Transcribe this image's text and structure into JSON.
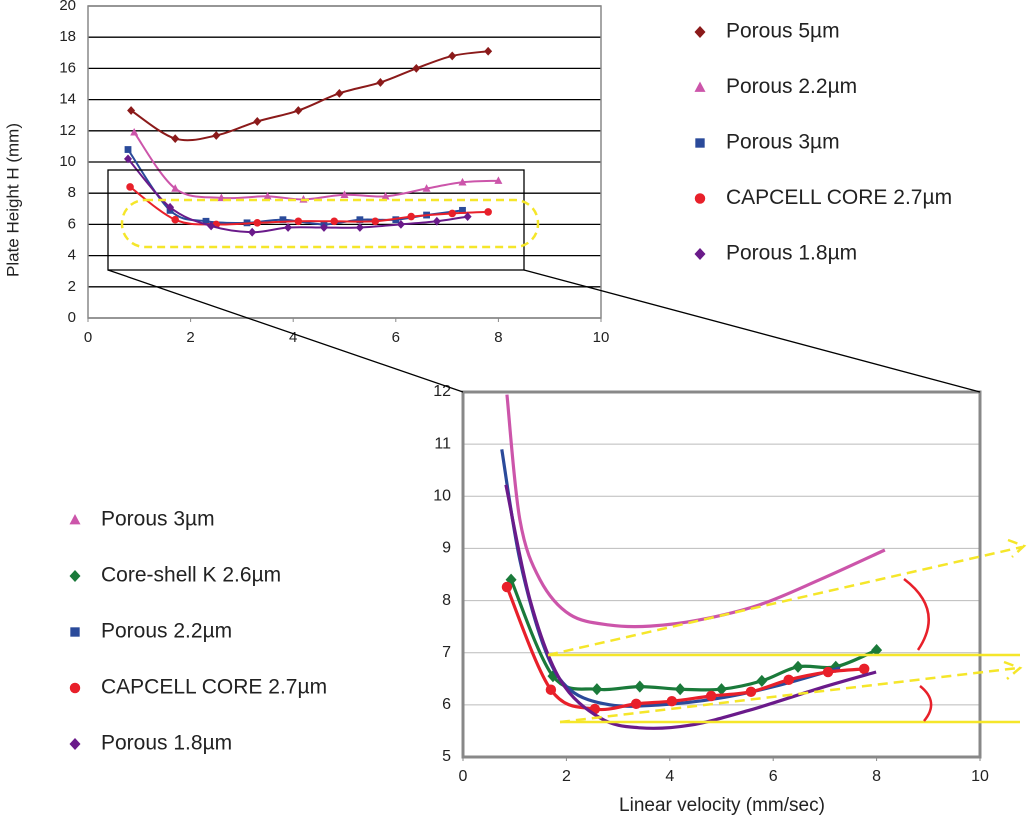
{
  "chart_data": [
    {
      "type": "scatter",
      "ylabel": "Plate Height H (mm)",
      "xlim": [
        0,
        10
      ],
      "xticks": [
        0,
        2,
        4,
        6,
        8,
        10
      ],
      "ylim": [
        0,
        20
      ],
      "yticks": [
        0,
        2,
        4,
        6,
        8,
        10,
        12,
        14,
        16,
        18,
        20
      ],
      "grid": true,
      "series": [
        {
          "name": "Porous 5µm",
          "color": "#8b1a1a",
          "marker": "diamond",
          "show_points": true,
          "x": [
            0.84,
            1.7,
            2.5,
            3.3,
            4.1,
            4.9,
            5.7,
            6.4,
            7.1,
            7.8
          ],
          "values": [
            13.3,
            11.5,
            11.7,
            12.6,
            13.3,
            14.4,
            15.1,
            16.0,
            16.8,
            17.1
          ]
        },
        {
          "name": "Porous 2.2µm",
          "color": "#cc55aa",
          "marker": "triangle",
          "show_points": true,
          "x": [
            0.9,
            1.7,
            2.6,
            3.5,
            4.2,
            5.0,
            5.8,
            6.6,
            7.3,
            8.0
          ],
          "values": [
            11.9,
            8.3,
            7.7,
            7.8,
            7.6,
            7.9,
            7.8,
            8.3,
            8.7,
            8.8
          ]
        },
        {
          "name": "Porous 3µm",
          "color": "#2a4a9a",
          "marker": "square",
          "show_points": true,
          "x": [
            0.78,
            1.6,
            2.3,
            3.1,
            3.8,
            4.6,
            5.3,
            6.0,
            6.6,
            7.3
          ],
          "values": [
            10.8,
            6.9,
            6.2,
            6.1,
            6.3,
            6.0,
            6.3,
            6.3,
            6.6,
            6.9
          ]
        },
        {
          "name": "CAPCELL CORE 2.7µm",
          "color": "#e8202a",
          "marker": "circle",
          "show_points": true,
          "x": [
            0.82,
            1.7,
            2.5,
            3.3,
            4.1,
            4.8,
            5.6,
            6.3,
            7.1,
            7.8
          ],
          "values": [
            8.4,
            6.3,
            6.0,
            6.1,
            6.2,
            6.2,
            6.2,
            6.5,
            6.7,
            6.8
          ]
        },
        {
          "name": "Porous 1.8µm",
          "color": "#6a1a8a",
          "marker": "diamond",
          "show_points": true,
          "x": [
            0.78,
            1.6,
            2.4,
            3.2,
            3.9,
            4.6,
            5.3,
            6.1,
            6.8,
            7.4
          ],
          "values": [
            10.2,
            7.1,
            5.9,
            5.5,
            5.8,
            5.8,
            5.8,
            6.0,
            6.2,
            6.5
          ]
        }
      ]
    },
    {
      "type": "scatter",
      "xlabel": "Linear velocity (mm/sec)",
      "xlim": [
        0,
        10
      ],
      "xticks": [
        0,
        2,
        4,
        6,
        8,
        10
      ],
      "ylim": [
        5,
        12
      ],
      "yticks": [
        5,
        6,
        7,
        8,
        9,
        10,
        11,
        12
      ],
      "grid": true,
      "series": [
        {
          "name": "Porous 3µm",
          "color": "#cc55aa",
          "marker": "triangle",
          "show_points": false,
          "x": [
            0.85,
            1.1,
            1.49,
            2.07,
            2.84,
            3.62,
            4.58,
            5.74,
            6.9,
            8.16
          ],
          "values": [
            11.95,
            9.55,
            8.4,
            7.73,
            7.53,
            7.51,
            7.63,
            7.92,
            8.4,
            8.97
          ]
        },
        {
          "name": "Core-shell K 2.6µm",
          "color": "#1a7a3a",
          "marker": "diamond",
          "show_points": true,
          "x": [
            0.93,
            1.74,
            2.59,
            3.42,
            4.2,
            5.0,
            5.78,
            6.48,
            7.21,
            8.0
          ],
          "values": [
            8.4,
            6.55,
            6.3,
            6.35,
            6.3,
            6.3,
            6.46,
            6.73,
            6.73,
            7.05
          ]
        },
        {
          "name": "Porous 2.2µm",
          "color": "#2a4a9a",
          "marker": "square",
          "show_points": false,
          "x": [
            0.75,
            1.1,
            1.59,
            2.07,
            2.84,
            3.81,
            4.97,
            6.13,
            7.29
          ],
          "values": [
            10.9,
            8.78,
            7.05,
            6.29,
            6.0,
            6.0,
            6.13,
            6.38,
            6.71
          ]
        },
        {
          "name": "CAPCELL CORE 2.7µm",
          "color": "#e8202a",
          "marker": "circle",
          "show_points": true,
          "x": [
            0.85,
            1.7,
            2.55,
            3.35,
            4.04,
            4.8,
            5.57,
            6.3,
            7.06,
            7.76
          ],
          "values": [
            8.26,
            6.29,
            5.92,
            6.02,
            6.07,
            6.17,
            6.25,
            6.48,
            6.63,
            6.69
          ]
        },
        {
          "name": "Porous 1.8µm",
          "color": "#6a1a8a",
          "marker": "diamond",
          "show_points": false,
          "x": [
            0.83,
            1.3,
            1.88,
            2.65,
            3.42,
            4.39,
            5.55,
            6.9,
            7.99
          ],
          "values": [
            10.22,
            8.0,
            6.48,
            5.75,
            5.56,
            5.61,
            5.9,
            6.32,
            6.63
          ]
        }
      ]
    }
  ]
}
